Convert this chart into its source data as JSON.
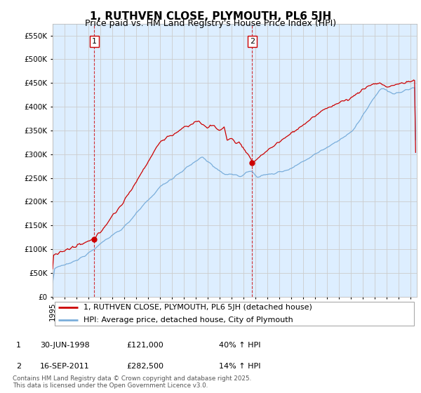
{
  "title": "1, RUTHVEN CLOSE, PLYMOUTH, PL6 5JH",
  "subtitle": "Price paid vs. HM Land Registry's House Price Index (HPI)",
  "ylim": [
    0,
    575000
  ],
  "yticks": [
    0,
    50000,
    100000,
    150000,
    200000,
    250000,
    300000,
    350000,
    400000,
    450000,
    500000,
    550000
  ],
  "xlim_start": 1995.0,
  "xlim_end": 2025.5,
  "sale1_date": 1998.49,
  "sale1_price": 121000,
  "sale2_date": 2011.71,
  "sale2_price": 282500,
  "red_line_color": "#cc0000",
  "blue_line_color": "#7aaedb",
  "vline_color": "#cc0000",
  "grid_color": "#cccccc",
  "plot_bg_color": "#ddeeff",
  "legend_label_red": "1, RUTHVEN CLOSE, PLYMOUTH, PL6 5JH (detached house)",
  "legend_label_blue": "HPI: Average price, detached house, City of Plymouth",
  "annot1_date": "30-JUN-1998",
  "annot1_price": "£121,000",
  "annot1_hpi": "40% ↑ HPI",
  "annot2_date": "16-SEP-2011",
  "annot2_price": "£282,500",
  "annot2_hpi": "14% ↑ HPI",
  "footer": "Contains HM Land Registry data © Crown copyright and database right 2025.\nThis data is licensed under the Open Government Licence v3.0.",
  "bg_color": "#ffffff",
  "title_fontsize": 11,
  "subtitle_fontsize": 9,
  "tick_fontsize": 7.5,
  "legend_fontsize": 8
}
